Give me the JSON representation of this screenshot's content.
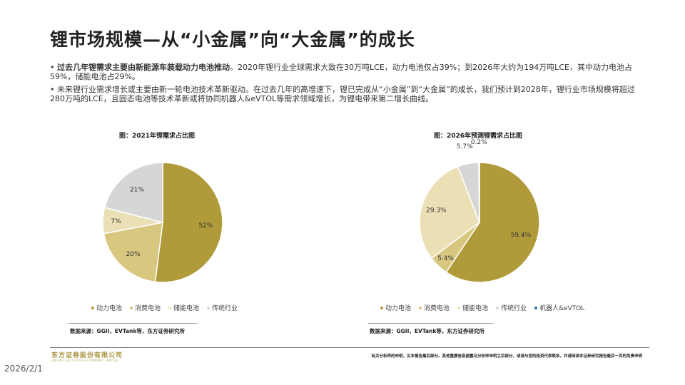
{
  "title": "锂市场规模—从“小金属”向“大金属”的成长",
  "bullets": [
    {
      "strong": "过去几年锂需求主要由新能源车装载动力电池推动",
      "rest": "。2020年锂行业全球需求大致在30万吨LCE，动力电池仅占39%；到2026年大约为194万吨LCE，其中动力电池占59%，储能电池占29%。"
    },
    {
      "strong": "",
      "rest": "未来锂行业需求增长或主要由新一轮电池技术革新驱动。在过去几年的高增速下，锂已完成从“小金属”到“大金属”的成长，我们预计到2028年，锂行业市场规模将超过280万吨的LCE，且固态电池等技术革新或将协同机器人&eVTOL等需求领域增长，为锂电带来第二增长曲线。"
    }
  ],
  "chart_data": [
    {
      "type": "pie",
      "title": "图：2021年锂需求占比图",
      "categories": [
        "动力电池",
        "消费电池",
        "储能电池",
        "传统行业"
      ],
      "values": [
        52,
        20,
        7,
        21
      ],
      "labels": [
        "52%",
        "20%",
        "7%",
        "21%"
      ],
      "colors": [
        "#b09a3a",
        "#d8c77f",
        "#ebe0b5",
        "#d6d6d6"
      ],
      "source": "数据来源：GGII，EVTank等，东方证券研究所",
      "legend_position": "bottom"
    },
    {
      "type": "pie",
      "title": "图：2026年预测锂需求占比图",
      "categories": [
        "动力电池",
        "消费电池",
        "储能电池",
        "传统行业",
        "机器人&eVTOL"
      ],
      "values": [
        59.4,
        5.4,
        29.3,
        5.7,
        0.2
      ],
      "labels": [
        "59.4%",
        "5.4%",
        "29.3%",
        "5.7%",
        "0.2%"
      ],
      "colors": [
        "#b09a3a",
        "#d8c77f",
        "#ebe0b5",
        "#d6d6d6",
        "#3b64b0"
      ],
      "source": "数据来源：GGII，EVTank等，东方证券研究所",
      "legend_position": "bottom"
    }
  ],
  "footer": {
    "company": "东方证券股份有限公司",
    "company_en": "ORIENT SECURITIES COMPANY LIMITED",
    "disclaimer": "有关分析师的申明，见本报告最后部分。其他重要信息披露见分析师申明之后部分，或请与您的投资代表联系。并请阅读本证券研究报告最后一页的免责申明",
    "date": "2026/2/1"
  }
}
